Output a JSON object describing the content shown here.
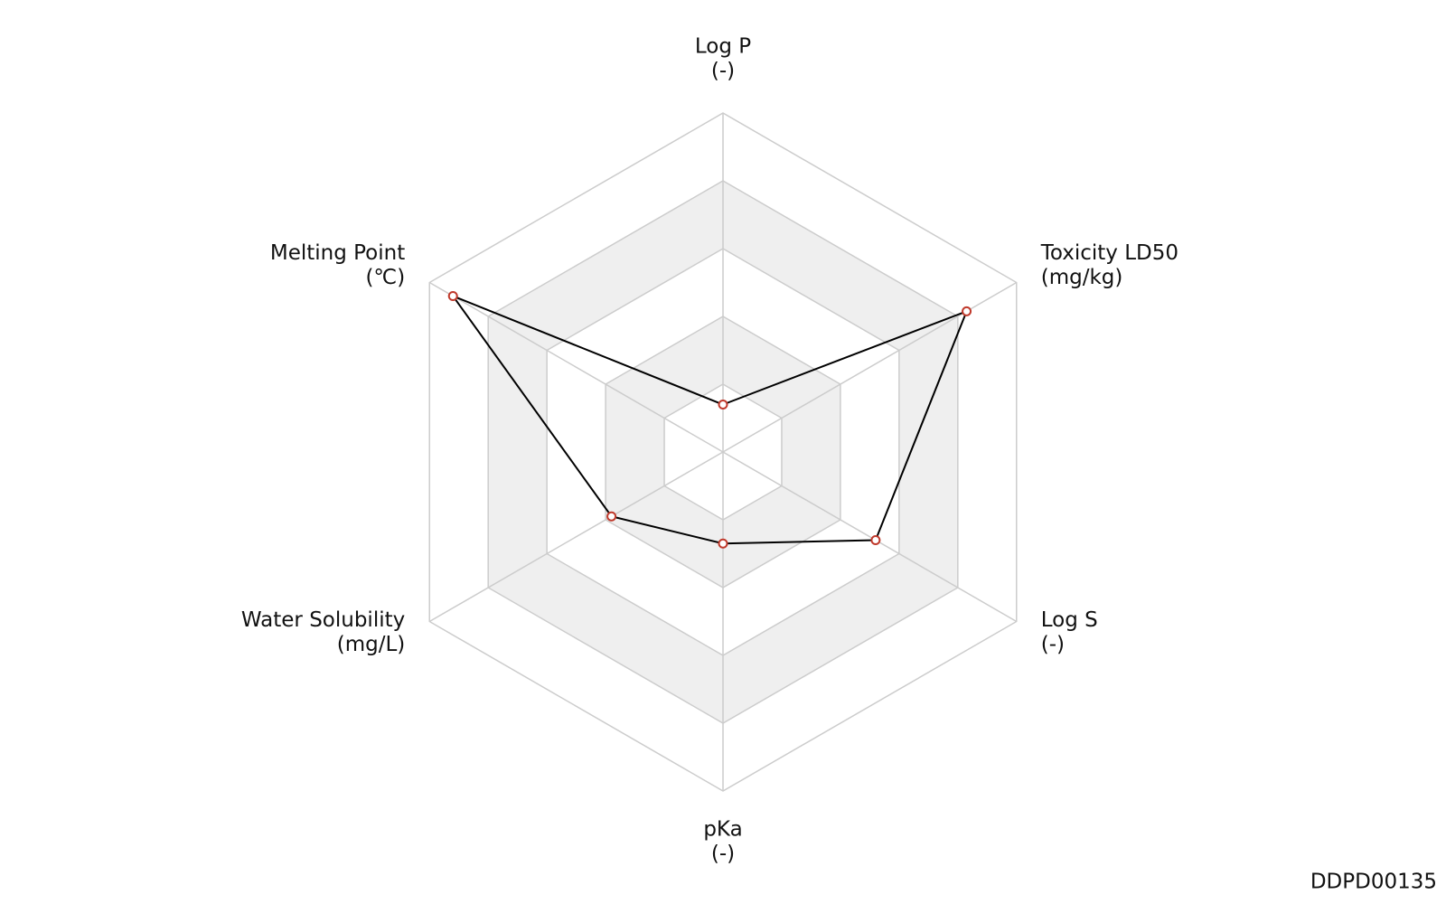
{
  "chart_data": {
    "type": "radar",
    "categories": [
      "Log P",
      "Toxicity LD50",
      "Log S",
      "pKa",
      "Water Solubility",
      "Melting Point"
    ],
    "units": [
      "(-)",
      "(mg/kg)",
      "(-)",
      "(-)",
      "(mg/L)",
      "(℃)"
    ],
    "series": [
      {
        "color": "#000000",
        "marker_color": "#c0392b",
        "values": [
          0.7,
          4.15,
          2.6,
          1.35,
          1.9,
          4.6
        ]
      }
    ],
    "ylim": [
      0,
      5
    ],
    "yticks": [
      1,
      2,
      3,
      4,
      5
    ],
    "grid": true,
    "band_color": "#efefef",
    "grid_color": "#cccccc"
  },
  "footer": {
    "id": "DDPD00135"
  }
}
